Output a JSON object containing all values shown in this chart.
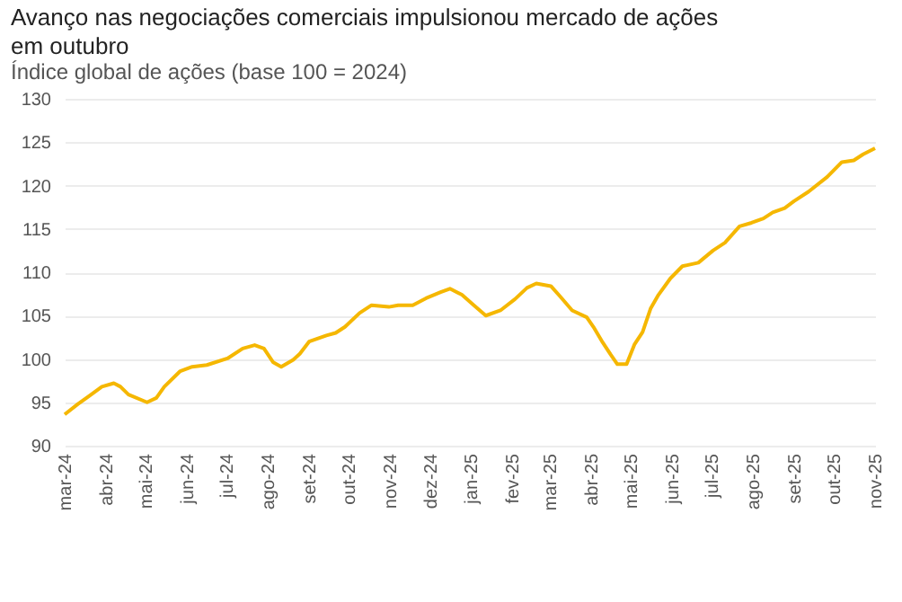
{
  "chart_data": {
    "type": "line",
    "title": "Avanço nas negociações comerciais impulsionou mercado de ações em outubro",
    "subtitle": "Índice global de ações (base 100 = 2024)",
    "x": [
      "2024-03-01",
      "2024-03-11",
      "2024-03-20",
      "2024-03-29",
      "2024-04-07",
      "2024-04-12",
      "2024-04-18",
      "2024-05-02",
      "2024-05-09",
      "2024-05-15",
      "2024-05-27",
      "2024-06-05",
      "2024-06-16",
      "2024-07-02",
      "2024-07-13",
      "2024-07-22",
      "2024-07-29",
      "2024-08-05",
      "2024-08-11",
      "2024-08-20",
      "2024-08-25",
      "2024-09-01",
      "2024-09-14",
      "2024-09-21",
      "2024-09-28",
      "2024-10-09",
      "2024-10-18",
      "2024-10-31",
      "2024-11-07",
      "2024-11-18",
      "2024-11-28",
      "2024-12-09",
      "2024-12-16",
      "2024-12-25",
      "2025-01-03",
      "2025-01-12",
      "2025-01-23",
      "2025-02-03",
      "2025-02-12",
      "2025-02-19",
      "2025-03-02",
      "2025-03-09",
      "2025-03-18",
      "2025-03-29",
      "2025-04-03",
      "2025-04-10",
      "2025-04-16",
      "2025-04-21",
      "2025-04-28",
      "2025-05-04",
      "2025-05-10",
      "2025-05-16",
      "2025-05-22",
      "2025-05-31",
      "2025-06-09",
      "2025-06-21",
      "2025-07-02",
      "2025-07-11",
      "2025-07-22",
      "2025-07-31",
      "2025-08-09",
      "2025-08-16",
      "2025-08-25",
      "2025-09-01",
      "2025-09-12",
      "2025-09-26",
      "2025-10-07",
      "2025-10-16",
      "2025-10-23",
      "2025-11-01"
    ],
    "series": [
      {
        "color": "#f5b700",
        "values": [
          93.6,
          94.8,
          95.8,
          96.8,
          97.2,
          96.8,
          95.9,
          95.0,
          95.5,
          96.8,
          98.6,
          99.1,
          99.3,
          100.1,
          101.2,
          101.6,
          101.2,
          99.6,
          99.1,
          99.9,
          100.6,
          102.0,
          102.7,
          103.0,
          103.7,
          105.3,
          106.2,
          106.0,
          106.2,
          106.2,
          107.0,
          107.7,
          108.1,
          107.4,
          106.2,
          105.0,
          105.6,
          106.9,
          108.2,
          108.7,
          108.4,
          107.2,
          105.6,
          104.8,
          103.7,
          101.9,
          100.5,
          99.4,
          99.4,
          101.7,
          103.1,
          105.8,
          107.4,
          109.3,
          110.7,
          111.1,
          112.5,
          113.4,
          115.3,
          115.7,
          116.2,
          116.9,
          117.4,
          118.2,
          119.3,
          121.0,
          122.7,
          122.9,
          123.6,
          124.3
        ]
      }
    ],
    "xlim": [
      "2024-03-01",
      "2025-11-01"
    ],
    "xticks": [
      {
        "value": "2024-03-01",
        "label": "mar-24"
      },
      {
        "value": "2024-04-01",
        "label": "abr-24"
      },
      {
        "value": "2024-05-01",
        "label": "mai-24"
      },
      {
        "value": "2024-06-01",
        "label": "jun-24"
      },
      {
        "value": "2024-07-01",
        "label": "jul-24"
      },
      {
        "value": "2024-08-01",
        "label": "ago-24"
      },
      {
        "value": "2024-09-01",
        "label": "set-24"
      },
      {
        "value": "2024-10-01",
        "label": "out-24"
      },
      {
        "value": "2024-11-01",
        "label": "nov-24"
      },
      {
        "value": "2024-12-01",
        "label": "dez-24"
      },
      {
        "value": "2025-01-01",
        "label": "jan-25"
      },
      {
        "value": "2025-02-01",
        "label": "fev-25"
      },
      {
        "value": "2025-03-01",
        "label": "mar-25"
      },
      {
        "value": "2025-04-01",
        "label": "abr-25"
      },
      {
        "value": "2025-05-01",
        "label": "mai-25"
      },
      {
        "value": "2025-06-01",
        "label": "jun-25"
      },
      {
        "value": "2025-07-01",
        "label": "jul-25"
      },
      {
        "value": "2025-08-01",
        "label": "ago-25"
      },
      {
        "value": "2025-09-01",
        "label": "set-25"
      },
      {
        "value": "2025-10-01",
        "label": "out-25"
      },
      {
        "value": "2025-11-01",
        "label": "nov-25"
      }
    ],
    "ylim": [
      90,
      130
    ],
    "yticks": [
      90,
      95,
      100,
      105,
      110,
      115,
      120,
      125,
      130
    ],
    "grid": "y",
    "marker": "none",
    "line_style": "solid"
  }
}
